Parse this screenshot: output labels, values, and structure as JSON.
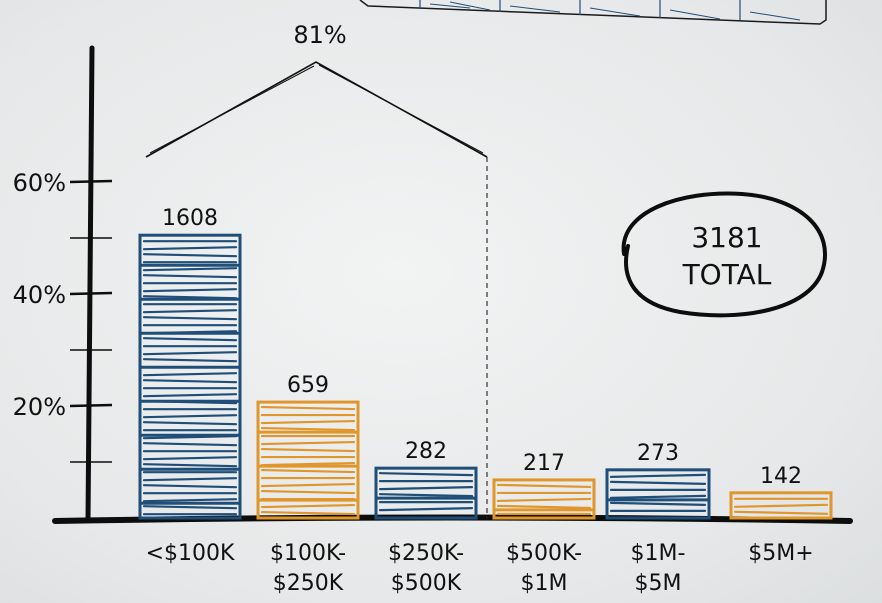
{
  "chart_data": {
    "type": "bar",
    "categories": [
      [
        "<$100K"
      ],
      [
        "$100K-",
        "$250K"
      ],
      [
        "$250K-",
        "$500K"
      ],
      [
        "$500K-",
        "$1M"
      ],
      [
        "$1M-",
        "$5M"
      ],
      [
        "$5M+"
      ]
    ],
    "values": [
      1608,
      659,
      282,
      217,
      273,
      142
    ],
    "value_labels": [
      "1608",
      "659",
      "282",
      "217",
      "273",
      "142"
    ],
    "percent_values": [
      50.5,
      20.7,
      8.9,
      6.8,
      8.6,
      4.5
    ],
    "bar_colors": [
      "#1f4e79",
      "#e0962b",
      "#1f4e79",
      "#e0962b",
      "#1f4e79",
      "#e0962b"
    ],
    "y_ticks": [
      "20%",
      "40%",
      "60%"
    ],
    "y_tick_values": [
      20,
      40,
      60
    ],
    "ylim": [
      0,
      70
    ],
    "bracket": {
      "label": "81%",
      "from_index": 0,
      "to_index": 2
    },
    "total": {
      "value": "3181",
      "label": "TOTAL"
    },
    "xlabel": "",
    "ylabel": "",
    "grid": false
  }
}
